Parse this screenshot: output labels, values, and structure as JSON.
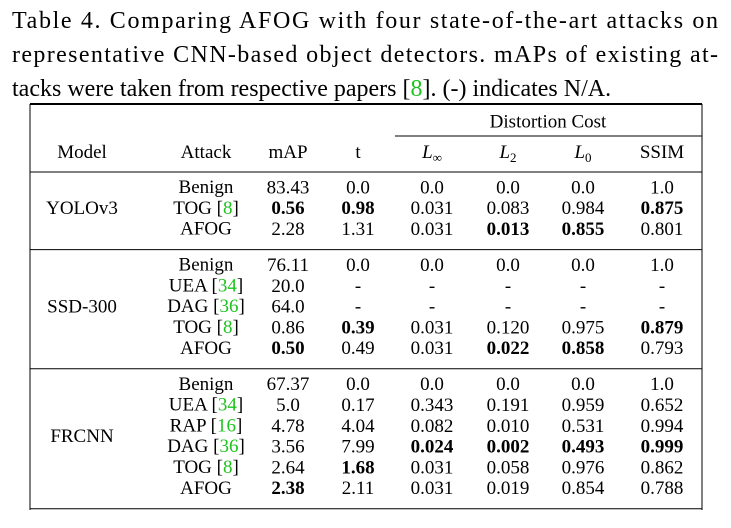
{
  "caption": {
    "lines": [
      "Table 4. Comparing AFOG with four state-of-the-art attacks on",
      "representative CNN-based object detectors. mAPs of existing at-"
    ],
    "last": {
      "text": "tacks were taken from respective papers [",
      "cite": "8",
      "after": "]. (-) indicates N/A."
    }
  },
  "table": {
    "group_header": "Distortion Cost",
    "columns": [
      {
        "text": "Model"
      },
      {
        "text": "Attack"
      },
      {
        "text": "mAP"
      },
      {
        "text": "t"
      },
      {
        "text": "L",
        "sub": "∞",
        "italic": true
      },
      {
        "text": "L",
        "sub": "2",
        "italic": true
      },
      {
        "text": "L",
        "sub": "0",
        "italic": true
      },
      {
        "text": "SSIM"
      }
    ],
    "groups": [
      {
        "model": "YOLOv3",
        "rows": [
          {
            "attack": {
              "text": "Benign"
            },
            "cells": [
              "83.43",
              "0.0",
              "0.0",
              "0.0",
              "0.0",
              "1.0"
            ],
            "bold": []
          },
          {
            "attack": {
              "text": "TOG [",
              "cite": "8",
              "after": "]"
            },
            "cells": [
              "0.56",
              "0.98",
              "0.031",
              "0.083",
              "0.984",
              "0.875"
            ],
            "bold": [
              0,
              1,
              5
            ]
          },
          {
            "attack": {
              "text": "AFOG"
            },
            "cells": [
              "2.28",
              "1.31",
              "0.031",
              "0.013",
              "0.855",
              "0.801"
            ],
            "bold": [
              3,
              4
            ]
          }
        ]
      },
      {
        "model": "SSD-300",
        "rows": [
          {
            "attack": {
              "text": "Benign"
            },
            "cells": [
              "76.11",
              "0.0",
              "0.0",
              "0.0",
              "0.0",
              "1.0"
            ],
            "bold": []
          },
          {
            "attack": {
              "text": "UEA [",
              "cite": "34",
              "after": "]"
            },
            "cells": [
              "20.0",
              "-",
              "-",
              "-",
              "-",
              "-"
            ],
            "bold": []
          },
          {
            "attack": {
              "text": "DAG [",
              "cite": "36",
              "after": "]"
            },
            "cells": [
              "64.0",
              "-",
              "-",
              "-",
              "-",
              "-"
            ],
            "bold": []
          },
          {
            "attack": {
              "text": "TOG [",
              "cite": "8",
              "after": "]"
            },
            "cells": [
              "0.86",
              "0.39",
              "0.031",
              "0.120",
              "0.975",
              "0.879"
            ],
            "bold": [
              1,
              5
            ]
          },
          {
            "attack": {
              "text": "AFOG"
            },
            "cells": [
              "0.50",
              "0.49",
              "0.031",
              "0.022",
              "0.858",
              "0.793"
            ],
            "bold": [
              0,
              3,
              4
            ]
          }
        ]
      },
      {
        "model": "FRCNN",
        "rows": [
          {
            "attack": {
              "text": "Benign"
            },
            "cells": [
              "67.37",
              "0.0",
              "0.0",
              "0.0",
              "0.0",
              "1.0"
            ],
            "bold": []
          },
          {
            "attack": {
              "text": "UEA [",
              "cite": "34",
              "after": "]"
            },
            "cells": [
              "5.0",
              "0.17",
              "0.343",
              "0.191",
              "0.959",
              "0.652"
            ],
            "bold": []
          },
          {
            "attack": {
              "text": "RAP [",
              "cite": "16",
              "after": "]"
            },
            "cells": [
              "4.78",
              "4.04",
              "0.082",
              "0.010",
              "0.531",
              "0.994"
            ],
            "bold": []
          },
          {
            "attack": {
              "text": "DAG [",
              "cite": "36",
              "after": "]"
            },
            "cells": [
              "3.56",
              "7.99",
              "0.024",
              "0.002",
              "0.493",
              "0.999"
            ],
            "bold": [
              2,
              3,
              4,
              5
            ]
          },
          {
            "attack": {
              "text": "TOG [",
              "cite": "8",
              "after": "]"
            },
            "cells": [
              "2.64",
              "1.68",
              "0.031",
              "0.058",
              "0.976",
              "0.862"
            ],
            "bold": [
              1
            ]
          },
          {
            "attack": {
              "text": "AFOG"
            },
            "cells": [
              "2.38",
              "2.11",
              "0.031",
              "0.019",
              "0.854",
              "0.788"
            ],
            "bold": [
              0
            ]
          }
        ]
      }
    ]
  }
}
